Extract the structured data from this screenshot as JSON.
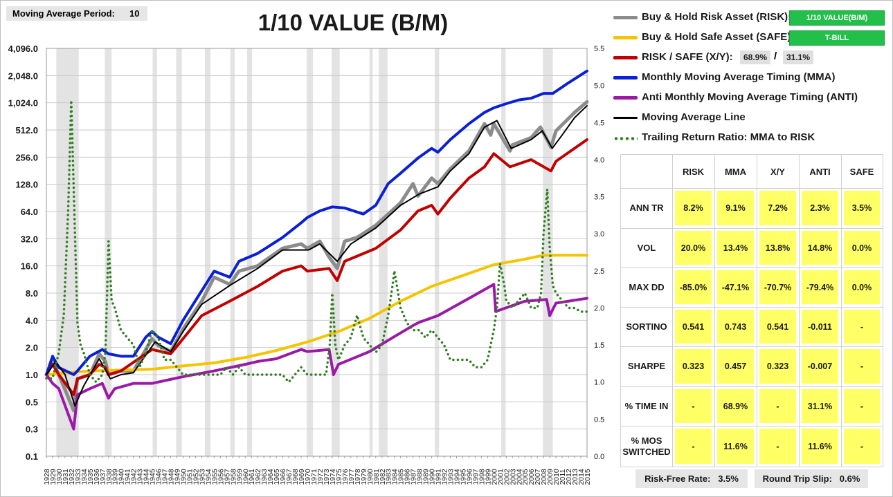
{
  "moving_average": {
    "label": "Moving Average Period:",
    "value": "10"
  },
  "title": "1/10 VALUE (B/M)",
  "legend": {
    "risk": "Buy & Hold Risk Asset (RISK):",
    "risk_asset": "1/10 VALUE(B/M)",
    "safe": "Buy & Hold Safe Asset (SAFE):",
    "safe_asset": "T-BILL",
    "xy": "RISK / SAFE (X/Y):",
    "xy_risk_pct": "68.9%",
    "xy_sep": "/",
    "xy_safe_pct": "31.1%",
    "mma": "Monthly Moving Average Timing (MMA)",
    "anti": "Anti Monthly Moving Average Timing (ANTI)",
    "ma_line": "Moving Average Line",
    "ratio": "Trailing Return Ratio: MMA to RISK"
  },
  "colors": {
    "risk": "#8c8c8c",
    "safe": "#f5c400",
    "xy": "#c00000",
    "mma": "#0a1fd6",
    "anti": "#9a1aa6",
    "ma_line": "#000000",
    "ratio": "#2e7d1f"
  },
  "stats": {
    "columns": [
      "RISK",
      "MMA",
      "X/Y",
      "ANTI",
      "SAFE"
    ],
    "rows": [
      {
        "label": "ANN TR",
        "values": [
          "8.2%",
          "9.1%",
          "7.2%",
          "2.3%",
          "3.5%"
        ]
      },
      {
        "label": "VOL",
        "values": [
          "20.0%",
          "13.4%",
          "13.8%",
          "14.8%",
          "0.0%"
        ]
      },
      {
        "label": "MAX DD",
        "values": [
          "-85.0%",
          "-47.1%",
          "-70.7%",
          "-79.4%",
          "0.0%"
        ]
      },
      {
        "label": "SORTINO",
        "values": [
          "0.541",
          "0.743",
          "0.541",
          "-0.011",
          "-"
        ]
      },
      {
        "label": "SHARPE",
        "values": [
          "0.323",
          "0.457",
          "0.323",
          "-0.007",
          "-"
        ]
      },
      {
        "label": "% TIME IN",
        "values": [
          "-",
          "68.9%",
          "-",
          "31.1%",
          "-"
        ]
      },
      {
        "label": "% MOS SWITCHED",
        "values": [
          "-",
          "11.6%",
          "-",
          "11.6%",
          "-"
        ]
      }
    ]
  },
  "footer": {
    "rf_label": "Risk-Free Rate:",
    "rf_value": "3.5%",
    "slip_label": "Round Trip Slip:",
    "slip_value": "0.6%"
  },
  "chart_data": {
    "type": "line",
    "title": "1/10 VALUE (B/M)",
    "x_range": [
      1928,
      2015
    ],
    "x_ticks": [
      1928,
      1929,
      1930,
      1931,
      1932,
      1933,
      1934,
      1935,
      1936,
      1937,
      1938,
      1939,
      1940,
      1941,
      1942,
      1943,
      1944,
      1945,
      1946,
      1947,
      1948,
      1949,
      1950,
      1951,
      1952,
      1953,
      1954,
      1955,
      1956,
      1957,
      1958,
      1959,
      1960,
      1961,
      1962,
      1963,
      1964,
      1965,
      1966,
      1967,
      1968,
      1969,
      1970,
      1971,
      1972,
      1973,
      1974,
      1975,
      1976,
      1977,
      1978,
      1979,
      1980,
      1981,
      1982,
      1983,
      1984,
      1985,
      1986,
      1987,
      1988,
      1989,
      1990,
      1991,
      1992,
      1993,
      1994,
      1995,
      1996,
      1997,
      1998,
      1999,
      2000,
      2001,
      2002,
      2003,
      2004,
      2005,
      2006,
      2007,
      2008,
      2009,
      2010,
      2011,
      2012,
      2013,
      2014,
      2015
    ],
    "y_left": {
      "scale": "log2",
      "ticks": [
        "4,096.0",
        "2,048.0",
        "1,024.0",
        "512.0",
        "256.0",
        "128.0",
        "64.0",
        "32.0",
        "16.0",
        "8.0",
        "4.0",
        "2.0",
        "1.0",
        "0.5",
        "0.3",
        "0.1"
      ]
    },
    "y_right": {
      "range": [
        0,
        5.5
      ],
      "ticks": [
        "5.5",
        "5.0",
        "4.5",
        "4.0",
        "3.5",
        "3.0",
        "2.5",
        "2.0",
        "1.5",
        "1.0",
        "0.5",
        "0.0"
      ]
    },
    "recessions": [
      [
        1929.6,
        1933.2
      ],
      [
        1937.4,
        1938.5
      ],
      [
        1945.1,
        1945.8
      ],
      [
        1948.9,
        1949.8
      ],
      [
        1953.5,
        1954.4
      ],
      [
        1957.6,
        1958.3
      ],
      [
        1960.3,
        1961.1
      ],
      [
        1969.9,
        1970.9
      ],
      [
        1973.9,
        1975.2
      ],
      [
        1980.0,
        1980.5
      ],
      [
        1981.5,
        1982.9
      ],
      [
        1990.5,
        1991.2
      ],
      [
        2001.2,
        2001.9
      ],
      [
        2007.9,
        2009.5
      ]
    ],
    "series": [
      {
        "name": "Buy & Hold Risk Asset (RISK)",
        "axis": "left",
        "color": "#8c8c8c",
        "x": [
          1928,
          1929,
          1930,
          1932.4,
          1933,
          1935,
          1936.5,
          1937.5,
          1938,
          1940,
          1942,
          1945,
          1946,
          1948,
          1950,
          1953,
          1955,
          1957.5,
          1959,
          1962,
          1963,
          1966,
          1969,
          1970,
          1972,
          1973.5,
          1974.8,
          1976,
          1978,
          1981,
          1983,
          1985,
          1987,
          1987.8,
          1990,
          1991,
          1993,
          1996,
          1998.5,
          1999.5,
          2000,
          2002.6,
          2003,
          2006,
          2007.5,
          2009.2,
          2010,
          2013,
          2015
        ],
        "y": [
          1.0,
          1.4,
          1.0,
          0.4,
          0.9,
          1.0,
          1.7,
          1.4,
          1.0,
          1.1,
          1.1,
          2.5,
          2.1,
          1.8,
          3.2,
          6.5,
          12,
          10,
          14,
          16,
          18,
          25,
          28,
          25,
          30,
          20,
          15,
          30,
          33,
          45,
          60,
          80,
          130,
          95,
          150,
          130,
          190,
          300,
          600,
          450,
          600,
          300,
          350,
          420,
          550,
          330,
          500,
          800,
          1050
        ]
      },
      {
        "name": "Buy & Hold Safe Asset (SAFE)",
        "axis": "left",
        "color": "#f5c400",
        "x": [
          1928,
          1935,
          1945,
          1950,
          1955,
          1960,
          1965,
          1970,
          1975,
          1980,
          1985,
          1990,
          1995,
          2000,
          2005,
          2008,
          2015
        ],
        "y": [
          1.0,
          1.1,
          1.15,
          1.25,
          1.35,
          1.55,
          1.85,
          2.3,
          3.0,
          4.2,
          6.5,
          9.5,
          12.5,
          16.5,
          19,
          21,
          21
        ]
      },
      {
        "name": "RISK / SAFE (X/Y)",
        "axis": "left",
        "color": "#c00000",
        "x": [
          1928,
          1929,
          1930,
          1932.4,
          1933,
          1935,
          1936.5,
          1937.5,
          1938,
          1940,
          1945,
          1948,
          1950,
          1953,
          1957.5,
          1962,
          1966,
          1969,
          1970,
          1973.5,
          1974.8,
          1976,
          1981,
          1985,
          1987.8,
          1990,
          1991,
          1993,
          1996,
          1998.5,
          2000,
          2002.6,
          2006,
          2009.2,
          2010,
          2015
        ],
        "y": [
          1.0,
          1.3,
          1.0,
          0.6,
          0.9,
          1.0,
          1.3,
          1.2,
          1.0,
          1.1,
          1.9,
          1.7,
          2.5,
          4.5,
          6.5,
          9.5,
          14,
          16,
          14,
          15,
          11,
          18,
          25,
          40,
          65,
          75,
          60,
          90,
          150,
          200,
          280,
          200,
          240,
          180,
          230,
          400
        ]
      },
      {
        "name": "Monthly Moving Average Timing (MMA)",
        "axis": "left",
        "color": "#0a1fd6",
        "x": [
          1928,
          1929,
          1930,
          1932.4,
          1933,
          1935,
          1937,
          1938,
          1940,
          1942,
          1944,
          1945,
          1946,
          1948,
          1950,
          1953,
          1955,
          1957.5,
          1959,
          1962,
          1966,
          1969,
          1970,
          1972,
          1974,
          1976,
          1979,
          1981,
          1983,
          1985,
          1987.8,
          1990,
          1991,
          1993,
          1996,
          1998.5,
          2000,
          2002,
          2004,
          2006,
          2008,
          2009.5,
          2012,
          2015
        ],
        "y": [
          1.0,
          1.6,
          1.2,
          1.0,
          1.1,
          1.6,
          1.9,
          1.7,
          1.6,
          1.6,
          2.6,
          3.0,
          2.6,
          2.2,
          4.0,
          8.5,
          14,
          12,
          18,
          22,
          33,
          48,
          55,
          65,
          72,
          70,
          60,
          75,
          130,
          170,
          250,
          320,
          290,
          400,
          600,
          800,
          900,
          1000,
          1100,
          1150,
          1300,
          1300,
          1700,
          2300
        ]
      },
      {
        "name": "Anti Monthly Moving Average Timing (ANTI)",
        "axis": "left",
        "color": "#9a1aa6",
        "x": [
          1928,
          1929,
          1930,
          1932.4,
          1933,
          1935,
          1937,
          1938,
          1939,
          1942,
          1945,
          1950,
          1955,
          1960,
          1962,
          1965,
          1969,
          1970,
          1973.5,
          1974.2,
          1975,
          1980,
          1983,
          1987,
          1988,
          1991,
          1996,
          2000,
          2000.3,
          2002,
          2005,
          2008.5,
          2009,
          2010,
          2015
        ],
        "y": [
          1.0,
          0.8,
          0.7,
          0.25,
          0.6,
          0.7,
          0.8,
          0.55,
          0.7,
          0.8,
          0.8,
          0.95,
          1.1,
          1.3,
          1.4,
          1.5,
          1.9,
          1.8,
          1.9,
          1.0,
          1.3,
          1.8,
          2.4,
          3.5,
          3.8,
          4.5,
          7,
          10,
          5,
          5.5,
          6.5,
          6.8,
          4.5,
          6.2,
          7
        ]
      },
      {
        "name": "Moving Average Line",
        "axis": "left",
        "color": "#000000",
        "x": [
          1928,
          1929.5,
          1931,
          1932.6,
          1934,
          1936.5,
          1938.3,
          1940,
          1942,
          1945.5,
          1948,
          1950,
          1953,
          1957.8,
          1962,
          1966,
          1970.2,
          1972,
          1974.8,
          1977,
          1981,
          1985,
          1988,
          1991,
          1993,
          1996,
          1998.5,
          2000.5,
          2002.8,
          2006,
          2007.8,
          2009.4,
          2011,
          2013,
          2015
        ],
        "y": [
          1.0,
          1.4,
          1.0,
          0.45,
          0.75,
          1.5,
          0.9,
          1.0,
          1.05,
          2.3,
          1.8,
          3.0,
          6,
          10,
          15,
          24,
          24,
          28,
          18,
          28,
          42,
          75,
          100,
          120,
          180,
          280,
          550,
          650,
          320,
          400,
          500,
          320,
          450,
          700,
          950
        ]
      },
      {
        "name": "Trailing Return Ratio: MMA to RISK",
        "axis": "right",
        "color": "#2e7d1f",
        "x": [
          1928,
          1929,
          1930,
          1930.8,
          1931.5,
          1932,
          1932.6,
          1933,
          1933.5,
          1934,
          1935,
          1936,
          1937,
          1937.5,
          1938,
          1938.5,
          1939,
          1940,
          1941,
          1942,
          1943,
          1944,
          1945,
          1946,
          1947,
          1948,
          1949,
          1950,
          1951,
          1952,
          1953,
          1954,
          1955,
          1956,
          1957,
          1958,
          1959,
          1960,
          1961,
          1962,
          1963,
          1964,
          1965,
          1966,
          1967,
          1968,
          1969,
          1970,
          1971,
          1972,
          1973,
          1973.6,
          1974,
          1974.5,
          1975,
          1976,
          1977,
          1978,
          1979,
          1980,
          1981,
          1982,
          1983,
          1983.7,
          1984,
          1985,
          1986,
          1987,
          1988,
          1989,
          1990,
          1991,
          1992,
          1993,
          1994,
          1995,
          1996,
          1997,
          1998,
          1999,
          2000,
          2000.5,
          2001,
          2001.7,
          2002,
          2003,
          2004,
          2005,
          2006,
          2007,
          2007.6,
          2008,
          2008.6,
          2009,
          2009.5,
          2010,
          2011,
          2012,
          2013,
          2014,
          2015
        ],
        "y": [
          1.05,
          1.05,
          1.4,
          1.9,
          3.3,
          4.8,
          3.0,
          1.8,
          1.5,
          1.4,
          1.1,
          1.0,
          1.1,
          1.4,
          2.9,
          2.1,
          2.0,
          1.7,
          1.6,
          1.5,
          1.2,
          1.4,
          1.7,
          1.6,
          1.3,
          1.3,
          1.2,
          1.1,
          1.1,
          1.1,
          1.1,
          1.1,
          1.1,
          1.1,
          1.2,
          1.1,
          1.2,
          1.1,
          1.1,
          1.1,
          1.1,
          1.1,
          1.1,
          1.1,
          1.0,
          1.1,
          1.2,
          1.1,
          1.1,
          1.1,
          1.1,
          1.5,
          2.2,
          1.5,
          1.3,
          1.5,
          1.6,
          1.9,
          1.6,
          1.5,
          1.4,
          1.5,
          1.9,
          2.3,
          2.5,
          2.0,
          1.8,
          1.7,
          1.7,
          1.6,
          1.7,
          1.6,
          1.5,
          1.3,
          1.3,
          1.3,
          1.3,
          1.2,
          1.2,
          1.3,
          1.7,
          2.0,
          2.6,
          2.3,
          2.1,
          2.0,
          2.1,
          2.2,
          2.0,
          2.0,
          2.2,
          3.0,
          3.6,
          2.8,
          2.3,
          2.2,
          2.1,
          2.0,
          2.0,
          1.95,
          1.95
        ]
      }
    ]
  }
}
